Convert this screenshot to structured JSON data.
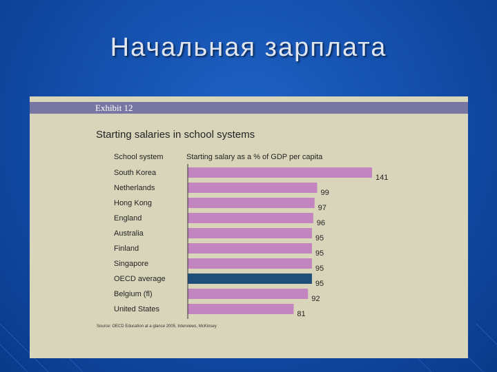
{
  "slide": {
    "title": "Начальная зарплата"
  },
  "exhibit": {
    "label": "Exhibit 12"
  },
  "colors": {
    "bar": "#c285c0",
    "highlight": "#1f4e78",
    "axis": "#333333"
  },
  "chart_data": {
    "type": "bar",
    "orientation": "horizontal",
    "title": "Starting salaries in school systems",
    "category_header": "School system",
    "value_header": "Starting salary as a % of GDP per capita",
    "categories": [
      "South Korea",
      "Netherlands",
      "Hong Kong",
      "England",
      "Australia",
      "Finland",
      "Singapore",
      "OECD average",
      "Belgium (fl)",
      "United States"
    ],
    "values": [
      141,
      99,
      97,
      96,
      95,
      95,
      95,
      95,
      92,
      81
    ],
    "highlight": "OECD average",
    "xlim": [
      0,
      141
    ],
    "grid": false,
    "source": "Source: OECD Education at a glance 2005, Interviews, McKinsey"
  }
}
